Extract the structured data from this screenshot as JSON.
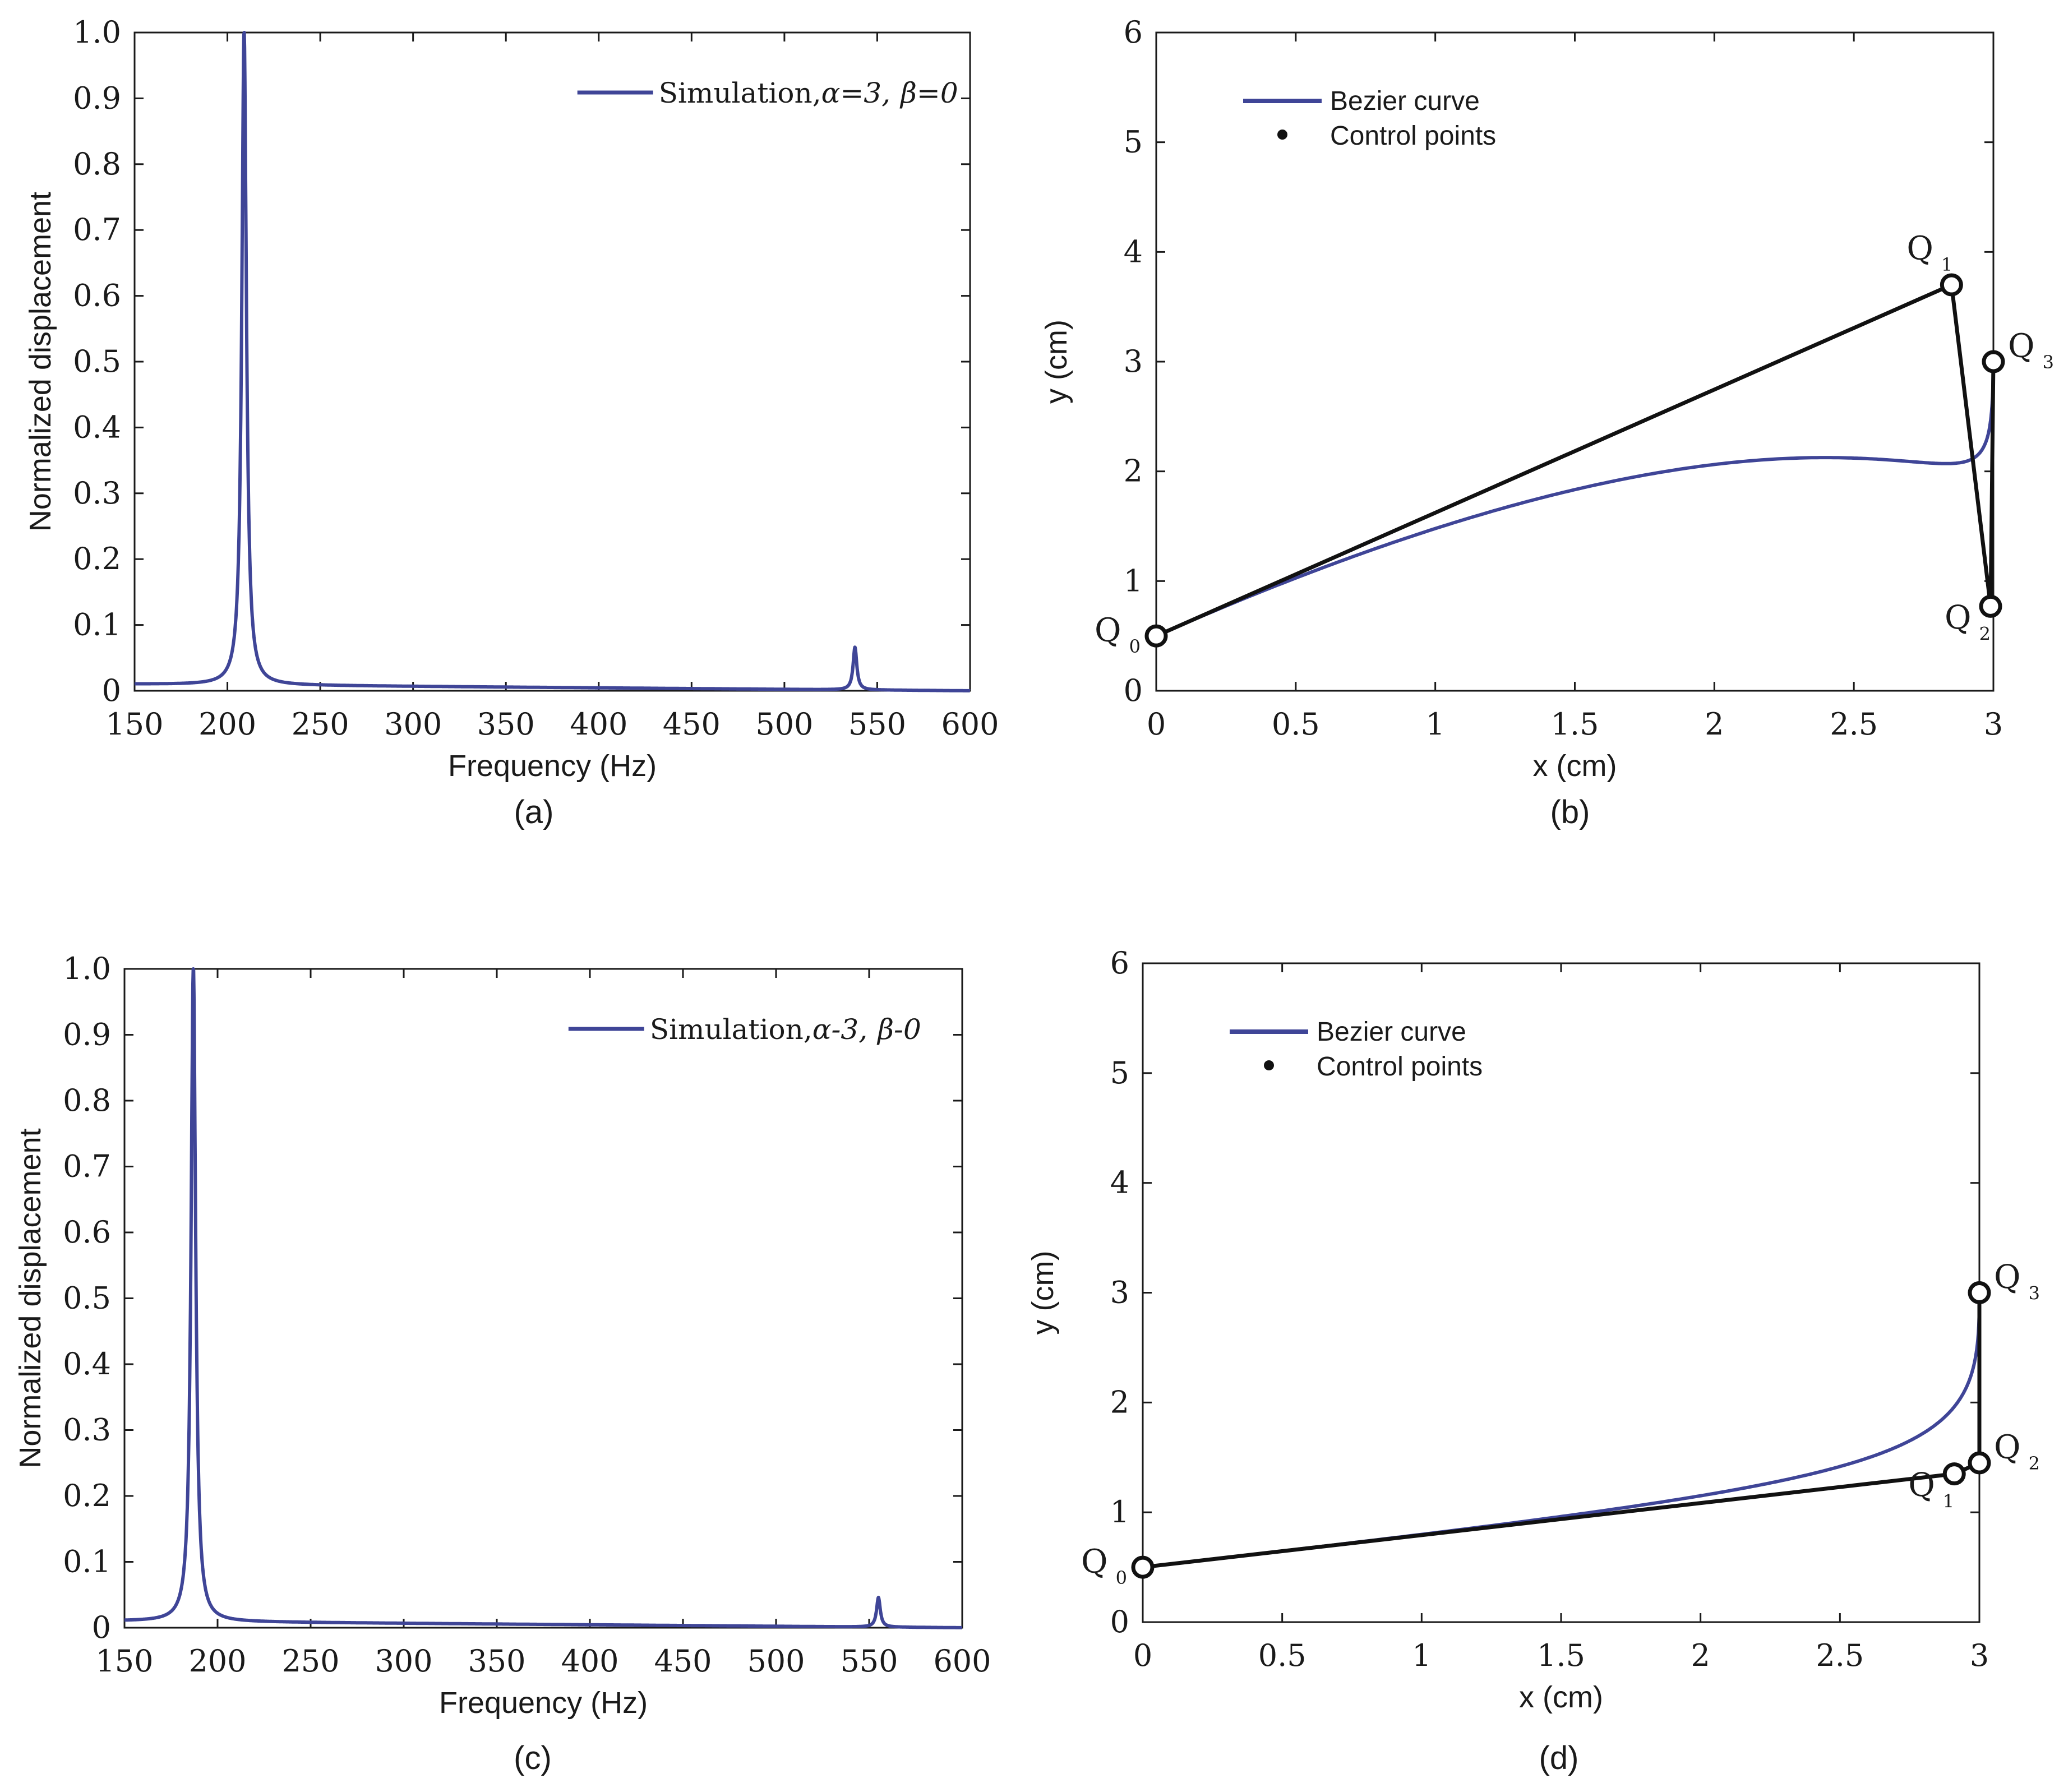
{
  "colors": {
    "curve": "#3f4597",
    "control": "#111111",
    "axis": "#1a1a1a",
    "background": "#ffffff"
  },
  "panels": [
    {
      "id": "a",
      "kind": "spectrum",
      "caption": "(a)",
      "xlabel": "Frequency (Hz)",
      "ylabel": "Normalized displacement",
      "legend": {
        "prefix": "Simulation,",
        "alpha_text": "α=3,",
        "beta_text": "β=0"
      }
    },
    {
      "id": "b",
      "kind": "bezier",
      "caption": "(b)",
      "xlabel": "x (cm)",
      "ylabel": "y (cm)",
      "legend": {
        "curve_label": "Bezier curve",
        "points_label": "Control points"
      }
    },
    {
      "id": "c",
      "kind": "spectrum",
      "caption": "(c)",
      "xlabel": "Frequency (Hz)",
      "ylabel": "Normalized displacement",
      "legend": {
        "prefix": "Simulation,",
        "alpha_text": "α-3,",
        "beta_text": "β-0"
      }
    },
    {
      "id": "d",
      "kind": "bezier",
      "caption": "(d)",
      "xlabel": "x (cm)",
      "ylabel": "y (cm)",
      "legend": {
        "curve_label": "Bezier curve",
        "points_label": "Control points"
      }
    }
  ],
  "chart_data": [
    {
      "panel": "a",
      "type": "line",
      "xlim": [
        150,
        600
      ],
      "ylim": [
        0,
        1.0
      ],
      "xticks": [
        150,
        200,
        250,
        300,
        350,
        400,
        450,
        500,
        550,
        600
      ],
      "xtick_labels": [
        "150",
        "200",
        "250",
        "300",
        "350",
        "400",
        "450",
        "500",
        "550",
        "600"
      ],
      "yticks": [
        0,
        0.1,
        0.2,
        0.3,
        0.4,
        0.5,
        0.6,
        0.7,
        0.8,
        0.9,
        1.0
      ],
      "ytick_labels": [
        "0",
        "0.1",
        "0.2",
        "0.3",
        "0.4",
        "0.5",
        "0.6",
        "0.7",
        "0.8",
        "0.9",
        "1.0"
      ],
      "series": [
        {
          "name": "Simulation, α=3, β=0",
          "resonances": [
            {
              "freq": 209,
              "peak": 1.0,
              "half_width": 1.5
            },
            {
              "freq": 538,
              "peak": 0.07,
              "half_width": 1.2
            }
          ],
          "baseline": {
            "start": 0.01,
            "end": 0.0
          }
        }
      ]
    },
    {
      "panel": "b",
      "type": "line",
      "xlim": [
        0,
        3
      ],
      "ylim": [
        0,
        6
      ],
      "xticks": [
        0,
        0.5,
        1,
        1.5,
        2,
        2.5,
        3
      ],
      "xtick_labels": [
        "0",
        "0.5",
        "1",
        "1.5",
        "2",
        "2.5",
        "3"
      ],
      "yticks": [
        0,
        1,
        2,
        3,
        4,
        5,
        6
      ],
      "ytick_labels": [
        "0",
        "1",
        "2",
        "3",
        "4",
        "5",
        "6"
      ],
      "control_points": [
        {
          "label": "Q",
          "sub": "0",
          "x": 0.0,
          "y": 0.5
        },
        {
          "label": "Q",
          "sub": "1",
          "x": 2.85,
          "y": 3.7
        },
        {
          "label": "Q",
          "sub": "2",
          "x": 2.99,
          "y": 0.77
        },
        {
          "label": "Q",
          "sub": "3",
          "x": 3.0,
          "y": 3.0
        }
      ],
      "label_side": [
        "left",
        "above-left",
        "below-left",
        "right"
      ]
    },
    {
      "panel": "c",
      "type": "line",
      "xlim": [
        150,
        600
      ],
      "ylim": [
        0,
        1.0
      ],
      "xticks": [
        150,
        200,
        250,
        300,
        350,
        400,
        450,
        500,
        550,
        600
      ],
      "xtick_labels": [
        "150",
        "200",
        "250",
        "300",
        "350",
        "400",
        "450",
        "500",
        "550",
        "600"
      ],
      "yticks": [
        0,
        0.1,
        0.2,
        0.3,
        0.4,
        0.5,
        0.6,
        0.7,
        0.8,
        0.9,
        1.0
      ],
      "ytick_labels": [
        "0",
        "0.1",
        "0.2",
        "0.3",
        "0.4",
        "0.5",
        "0.6",
        "0.7",
        "0.8",
        "0.9",
        "1.0"
      ],
      "series": [
        {
          "name": "Simulation, α-3, β-0",
          "resonances": [
            {
              "freq": 187,
              "peak": 1.0,
              "half_width": 1.5
            },
            {
              "freq": 555,
              "peak": 0.05,
              "half_width": 1.2
            }
          ],
          "baseline": {
            "start": 0.01,
            "end": 0.0
          }
        }
      ]
    },
    {
      "panel": "d",
      "type": "line",
      "xlim": [
        0,
        3
      ],
      "ylim": [
        0,
        6
      ],
      "xticks": [
        0,
        0.5,
        1,
        1.5,
        2,
        2.5,
        3
      ],
      "xtick_labels": [
        "0",
        "0.5",
        "1",
        "1.5",
        "2",
        "2.5",
        "3"
      ],
      "yticks": [
        0,
        1,
        2,
        3,
        4,
        5,
        6
      ],
      "ytick_labels": [
        "0",
        "1",
        "2",
        "3",
        "4",
        "5",
        "6"
      ],
      "control_points": [
        {
          "label": "Q",
          "sub": "0",
          "x": 0.0,
          "y": 0.5
        },
        {
          "label": "Q",
          "sub": "1",
          "x": 2.91,
          "y": 1.35
        },
        {
          "label": "Q",
          "sub": "2",
          "x": 3.0,
          "y": 1.45
        },
        {
          "label": "Q",
          "sub": "3",
          "x": 3.0,
          "y": 3.0
        }
      ],
      "label_side": [
        "left",
        "below-left",
        "right",
        "right"
      ]
    }
  ]
}
